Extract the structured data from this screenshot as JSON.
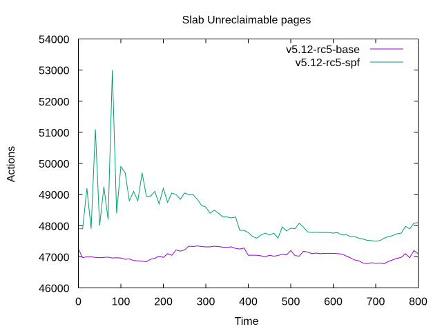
{
  "chart_data": {
    "type": "line",
    "title": "Slab Unreclaimable pages",
    "xlabel": "Time",
    "ylabel": "Actions",
    "xlim": [
      0,
      800
    ],
    "ylim": [
      46000,
      54000
    ],
    "xticks": [
      "0",
      "100",
      "200",
      "300",
      "400",
      "500",
      "600",
      "700",
      "800"
    ],
    "yticks": [
      "46000",
      "47000",
      "48000",
      "49000",
      "50000",
      "51000",
      "52000",
      "53000",
      "54000"
    ],
    "grid": false,
    "legend_position": "top-right",
    "series": [
      {
        "name": "v5.12-rc5-base",
        "color": "#9400d3",
        "x": [
          0,
          10,
          20,
          30,
          40,
          50,
          60,
          70,
          80,
          90,
          100,
          110,
          120,
          130,
          140,
          150,
          160,
          170,
          180,
          190,
          200,
          210,
          220,
          230,
          240,
          250,
          260,
          270,
          280,
          290,
          300,
          310,
          320,
          330,
          340,
          350,
          360,
          370,
          380,
          390,
          400,
          410,
          420,
          430,
          440,
          450,
          460,
          470,
          480,
          490,
          500,
          510,
          520,
          530,
          540,
          550,
          560,
          570,
          580,
          590,
          600,
          610,
          620,
          630,
          640,
          650,
          660,
          670,
          680,
          690,
          700,
          710,
          720,
          730,
          740,
          750,
          760,
          770,
          780,
          790,
          800
        ],
        "y": [
          47250,
          46970,
          47000,
          47000,
          46980,
          46970,
          46980,
          46990,
          46960,
          46970,
          46960,
          46920,
          46930,
          46880,
          46870,
          46860,
          46840,
          46920,
          46950,
          47020,
          46980,
          47100,
          47050,
          47220,
          47180,
          47220,
          47340,
          47330,
          47350,
          47330,
          47320,
          47320,
          47340,
          47330,
          47310,
          47300,
          47320,
          47270,
          47250,
          47280,
          47050,
          47050,
          47050,
          47030,
          47000,
          47050,
          47020,
          47040,
          47080,
          47060,
          47200,
          47040,
          47020,
          47180,
          47150,
          47100,
          47120,
          47100,
          47110,
          47110,
          47110,
          47100,
          47090,
          47030,
          46970,
          46900,
          46870,
          46800,
          46780,
          46810,
          46790,
          46800,
          46780,
          46850,
          46900,
          46950,
          46980,
          47100,
          46970,
          47200,
          47100
        ]
      },
      {
        "name": "v5.12-rc5-spf",
        "color": "#009e73",
        "x": [
          0,
          10,
          20,
          30,
          40,
          50,
          60,
          70,
          80,
          90,
          100,
          110,
          120,
          130,
          140,
          150,
          160,
          170,
          180,
          190,
          200,
          210,
          220,
          230,
          240,
          250,
          260,
          270,
          280,
          290,
          300,
          310,
          320,
          330,
          340,
          350,
          360,
          370,
          380,
          390,
          400,
          410,
          420,
          430,
          440,
          450,
          460,
          470,
          480,
          490,
          500,
          510,
          520,
          530,
          540,
          550,
          560,
          570,
          580,
          590,
          600,
          610,
          620,
          630,
          640,
          650,
          660,
          670,
          680,
          690,
          700,
          710,
          720,
          730,
          740,
          750,
          760,
          770,
          780,
          790,
          800
        ],
        "y": [
          47900,
          47900,
          49200,
          47900,
          51100,
          48000,
          49250,
          48200,
          53000,
          48400,
          49900,
          49700,
          48800,
          49100,
          48800,
          49700,
          48950,
          48950,
          49100,
          48700,
          49200,
          48750,
          49050,
          49000,
          48850,
          49050,
          49000,
          49000,
          48850,
          48650,
          48600,
          48400,
          48500,
          48400,
          48280,
          48280,
          48250,
          48280,
          47850,
          47850,
          47780,
          47650,
          47600,
          47700,
          47760,
          47700,
          47760,
          47600,
          47960,
          47830,
          47920,
          47900,
          48080,
          47950,
          47800,
          47780,
          47790,
          47780,
          47780,
          47780,
          47760,
          47780,
          47700,
          47720,
          47650,
          47650,
          47600,
          47570,
          47530,
          47520,
          47500,
          47520,
          47600,
          47650,
          47680,
          47740,
          47760,
          47980,
          47900,
          48080,
          48100
        ]
      }
    ]
  }
}
